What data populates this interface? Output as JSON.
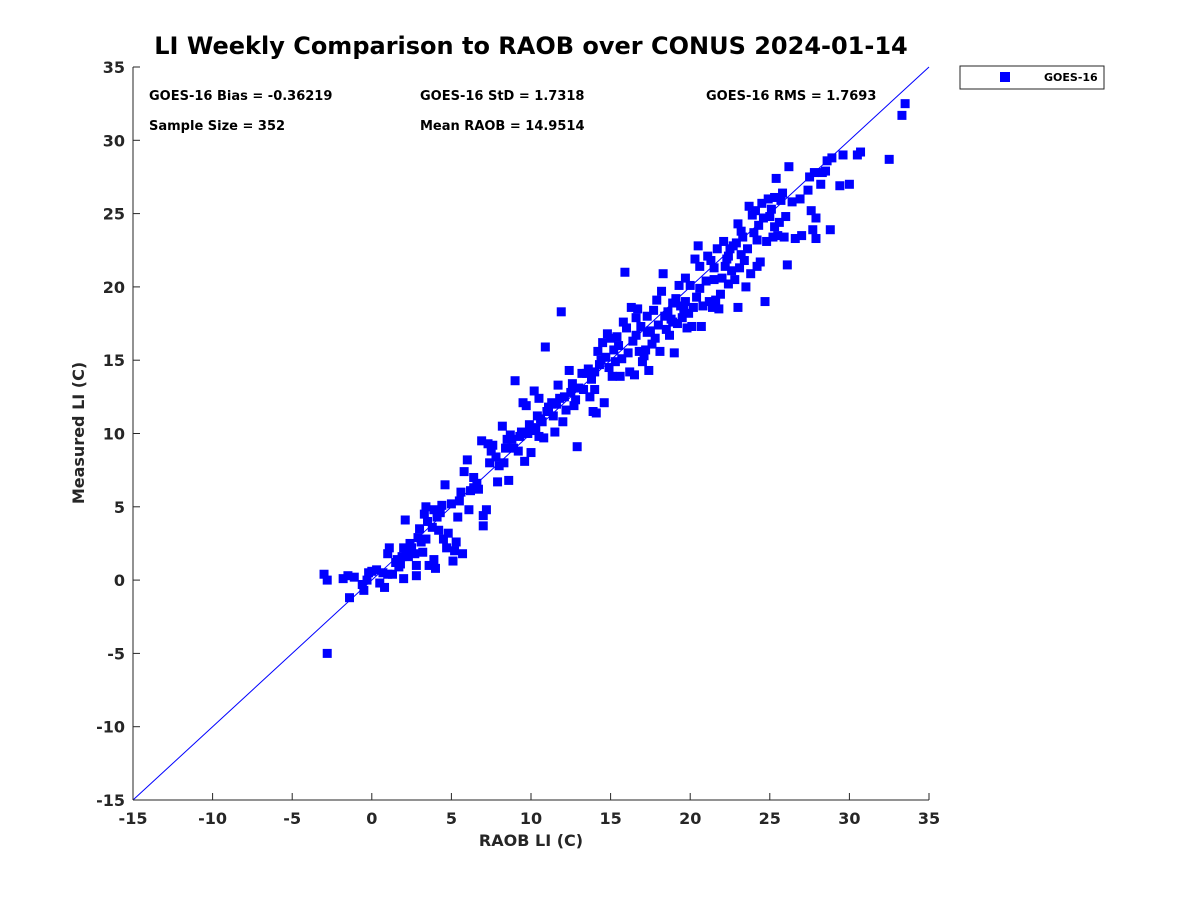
{
  "chart_data": {
    "type": "scatter",
    "title": "LI Weekly Comparison to RAOB over CONUS 2024-01-14",
    "xlabel": "RAOB LI (C)",
    "ylabel": "Measured LI (C)",
    "xlim": [
      -15,
      35
    ],
    "ylim": [
      -15,
      35
    ],
    "xticks": [
      -15,
      -10,
      -5,
      0,
      5,
      10,
      15,
      20,
      25,
      30,
      35
    ],
    "yticks": [
      -15,
      -10,
      -5,
      0,
      5,
      10,
      15,
      20,
      25,
      30,
      35
    ],
    "reference_line": {
      "from": [
        -15,
        -15
      ],
      "to": [
        35,
        35
      ],
      "color": "#0000ff"
    },
    "stats": {
      "bias": "GOES-16 Bias = -0.36219",
      "std": "GOES-16 StD = 1.7318",
      "rms": "GOES-16 RMS = 1.7693",
      "sample": "Sample Size = 352",
      "mean": "Mean RAOB = 14.9514"
    },
    "legend": {
      "placement": "outside-top-right",
      "label": "GOES-16"
    },
    "series": [
      {
        "name": "GOES-16",
        "color": "#0000ff",
        "marker": "square",
        "points": [
          [
            -3.0,
            0.4
          ],
          [
            -2.8,
            0.0
          ],
          [
            -2.8,
            -5.0
          ],
          [
            -1.8,
            0.1
          ],
          [
            -1.5,
            0.3
          ],
          [
            -1.4,
            -1.2
          ],
          [
            -1.1,
            0.2
          ],
          [
            -0.6,
            -0.3
          ],
          [
            -0.5,
            -0.7
          ],
          [
            -0.2,
            0.5
          ],
          [
            0.0,
            0.6
          ],
          [
            0.3,
            0.7
          ],
          [
            0.5,
            -0.2
          ],
          [
            0.8,
            -0.5
          ],
          [
            1.0,
            0.4
          ],
          [
            1.0,
            1.8
          ],
          [
            1.1,
            2.2
          ],
          [
            1.3,
            0.4
          ],
          [
            1.6,
            1.4
          ],
          [
            1.7,
            0.9
          ],
          [
            1.8,
            1.1
          ],
          [
            1.9,
            1.6
          ],
          [
            2.0,
            2.2
          ],
          [
            2.0,
            0.1
          ],
          [
            2.1,
            4.1
          ],
          [
            2.2,
            2.0
          ],
          [
            2.4,
            2.5
          ],
          [
            2.5,
            2.2
          ],
          [
            2.7,
            1.8
          ],
          [
            2.8,
            0.3
          ],
          [
            2.8,
            1.0
          ],
          [
            2.9,
            2.9
          ],
          [
            3.0,
            3.5
          ],
          [
            3.1,
            2.6
          ],
          [
            3.2,
            1.9
          ],
          [
            3.4,
            2.8
          ],
          [
            3.4,
            5.0
          ],
          [
            3.5,
            4.0
          ],
          [
            3.6,
            1.0
          ],
          [
            3.8,
            3.6
          ],
          [
            3.9,
            4.8
          ],
          [
            3.9,
            1.4
          ],
          [
            4.0,
            0.8
          ],
          [
            4.2,
            3.4
          ],
          [
            4.3,
            4.6
          ],
          [
            4.4,
            5.1
          ],
          [
            4.5,
            2.8
          ],
          [
            4.6,
            6.5
          ],
          [
            4.7,
            2.2
          ],
          [
            4.8,
            3.2
          ],
          [
            5.0,
            5.2
          ],
          [
            5.1,
            1.3
          ],
          [
            5.2,
            2.0
          ],
          [
            5.3,
            2.6
          ],
          [
            5.4,
            4.3
          ],
          [
            5.5,
            5.4
          ],
          [
            5.7,
            1.8
          ],
          [
            5.8,
            7.4
          ],
          [
            6.0,
            8.2
          ],
          [
            6.1,
            4.8
          ],
          [
            6.2,
            6.1
          ],
          [
            6.4,
            6.3
          ],
          [
            6.6,
            6.6
          ],
          [
            6.7,
            6.2
          ],
          [
            6.9,
            9.5
          ],
          [
            7.0,
            4.4
          ],
          [
            7.0,
            3.7
          ],
          [
            7.2,
            4.8
          ],
          [
            7.3,
            9.3
          ],
          [
            7.4,
            8.0
          ],
          [
            7.5,
            8.8
          ],
          [
            7.6,
            9.2
          ],
          [
            7.9,
            6.7
          ],
          [
            8.0,
            7.8
          ],
          [
            8.2,
            10.5
          ],
          [
            8.3,
            8.0
          ],
          [
            8.4,
            9.0
          ],
          [
            8.5,
            9.6
          ],
          [
            8.6,
            6.8
          ],
          [
            8.7,
            9.9
          ],
          [
            8.9,
            9.0
          ],
          [
            9.0,
            13.6
          ],
          [
            9.2,
            8.8
          ],
          [
            9.3,
            9.8
          ],
          [
            9.4,
            10.1
          ],
          [
            9.5,
            12.1
          ],
          [
            9.6,
            8.1
          ],
          [
            9.7,
            11.9
          ],
          [
            9.8,
            10.0
          ],
          [
            10.0,
            8.7
          ],
          [
            10.0,
            10.2
          ],
          [
            10.2,
            12.9
          ],
          [
            10.3,
            10.4
          ],
          [
            10.4,
            11.2
          ],
          [
            10.5,
            12.4
          ],
          [
            10.6,
            11.0
          ],
          [
            10.7,
            10.8
          ],
          [
            10.8,
            9.7
          ],
          [
            10.9,
            15.9
          ],
          [
            11.0,
            11.5
          ],
          [
            11.1,
            11.8
          ],
          [
            11.3,
            12.1
          ],
          [
            11.5,
            10.1
          ],
          [
            11.6,
            12.0
          ],
          [
            11.7,
            13.3
          ],
          [
            11.8,
            12.4
          ],
          [
            11.9,
            18.3
          ],
          [
            12.0,
            10.8
          ],
          [
            12.2,
            11.6
          ],
          [
            12.4,
            14.3
          ],
          [
            12.5,
            12.8
          ],
          [
            12.6,
            13.4
          ],
          [
            12.7,
            11.9
          ],
          [
            12.8,
            12.3
          ],
          [
            12.9,
            9.1
          ],
          [
            13.0,
            13.1
          ],
          [
            13.3,
            13.0
          ],
          [
            13.5,
            14.1
          ],
          [
            13.6,
            14.4
          ],
          [
            13.7,
            12.5
          ],
          [
            13.8,
            13.7
          ],
          [
            13.9,
            11.5
          ],
          [
            14.0,
            14.2
          ],
          [
            14.0,
            13.0
          ],
          [
            14.1,
            11.4
          ],
          [
            14.2,
            15.6
          ],
          [
            14.3,
            14.7
          ],
          [
            14.4,
            15.0
          ],
          [
            14.5,
            16.2
          ],
          [
            14.6,
            12.1
          ],
          [
            14.7,
            15.2
          ],
          [
            14.8,
            16.8
          ],
          [
            15.0,
            16.5
          ],
          [
            15.1,
            13.9
          ],
          [
            15.2,
            15.7
          ],
          [
            15.3,
            14.9
          ],
          [
            15.5,
            16.0
          ],
          [
            15.6,
            13.9
          ],
          [
            15.7,
            15.1
          ],
          [
            15.8,
            17.6
          ],
          [
            15.9,
            21.0
          ],
          [
            16.0,
            17.2
          ],
          [
            16.1,
            15.5
          ],
          [
            16.2,
            14.2
          ],
          [
            16.3,
            18.6
          ],
          [
            16.4,
            16.3
          ],
          [
            16.5,
            14.0
          ],
          [
            16.6,
            16.7
          ],
          [
            16.7,
            18.5
          ],
          [
            16.8,
            15.6
          ],
          [
            16.9,
            17.3
          ],
          [
            17.0,
            14.9
          ],
          [
            17.1,
            15.3
          ],
          [
            17.2,
            15.7
          ],
          [
            17.3,
            18.0
          ],
          [
            17.4,
            14.3
          ],
          [
            17.5,
            17.0
          ],
          [
            17.6,
            16.1
          ],
          [
            17.7,
            18.4
          ],
          [
            17.8,
            16.5
          ],
          [
            17.9,
            19.1
          ],
          [
            18.0,
            17.4
          ],
          [
            18.1,
            15.6
          ],
          [
            18.2,
            19.7
          ],
          [
            18.3,
            20.9
          ],
          [
            18.4,
            18.0
          ],
          [
            18.5,
            17.1
          ],
          [
            18.6,
            18.3
          ],
          [
            18.7,
            16.7
          ],
          [
            18.8,
            17.8
          ],
          [
            18.9,
            18.9
          ],
          [
            19.0,
            15.5
          ],
          [
            19.1,
            19.2
          ],
          [
            19.2,
            17.5
          ],
          [
            19.3,
            20.1
          ],
          [
            19.4,
            18.7
          ],
          [
            19.5,
            17.9
          ],
          [
            19.6,
            18.4
          ],
          [
            19.7,
            19.0
          ],
          [
            19.8,
            17.2
          ],
          [
            19.9,
            18.2
          ],
          [
            20.0,
            20.1
          ],
          [
            20.1,
            17.3
          ],
          [
            20.2,
            18.6
          ],
          [
            20.3,
            21.9
          ],
          [
            20.4,
            19.3
          ],
          [
            20.5,
            22.8
          ],
          [
            20.6,
            21.4
          ],
          [
            20.7,
            17.3
          ],
          [
            20.8,
            18.7
          ],
          [
            21.0,
            20.4
          ],
          [
            21.1,
            22.1
          ],
          [
            21.2,
            19.0
          ],
          [
            21.3,
            21.8
          ],
          [
            21.4,
            18.6
          ],
          [
            21.5,
            20.5
          ],
          [
            21.6,
            19.1
          ],
          [
            21.7,
            22.6
          ],
          [
            21.8,
            18.5
          ],
          [
            21.9,
            19.5
          ],
          [
            22.0,
            20.6
          ],
          [
            22.1,
            23.1
          ],
          [
            22.2,
            21.4
          ],
          [
            22.3,
            21.9
          ],
          [
            22.4,
            20.2
          ],
          [
            22.5,
            22.6
          ],
          [
            22.6,
            21.1
          ],
          [
            22.7,
            22.8
          ],
          [
            22.8,
            20.5
          ],
          [
            22.9,
            23.0
          ],
          [
            23.0,
            18.6
          ],
          [
            23.0,
            24.3
          ],
          [
            23.1,
            21.3
          ],
          [
            23.2,
            22.2
          ],
          [
            23.3,
            23.4
          ],
          [
            23.4,
            21.8
          ],
          [
            23.5,
            20.0
          ],
          [
            23.6,
            22.6
          ],
          [
            23.7,
            25.5
          ],
          [
            23.8,
            20.9
          ],
          [
            23.9,
            24.9
          ],
          [
            24.0,
            23.7
          ],
          [
            24.1,
            25.2
          ],
          [
            24.2,
            21.4
          ],
          [
            24.3,
            24.2
          ],
          [
            24.4,
            21.7
          ],
          [
            24.5,
            25.7
          ],
          [
            24.6,
            24.7
          ],
          [
            24.7,
            19.0
          ],
          [
            24.8,
            23.1
          ],
          [
            24.9,
            26.0
          ],
          [
            25.0,
            24.8
          ],
          [
            25.1,
            25.3
          ],
          [
            25.2,
            23.4
          ],
          [
            25.3,
            26.1
          ],
          [
            25.4,
            27.4
          ],
          [
            25.5,
            23.5
          ],
          [
            25.6,
            24.4
          ],
          [
            25.7,
            25.9
          ],
          [
            25.8,
            26.4
          ],
          [
            25.9,
            23.4
          ],
          [
            26.0,
            24.8
          ],
          [
            26.1,
            21.5
          ],
          [
            26.2,
            28.2
          ],
          [
            26.6,
            23.3
          ],
          [
            26.9,
            26.0
          ],
          [
            27.0,
            23.5
          ],
          [
            27.5,
            27.5
          ],
          [
            27.6,
            25.2
          ],
          [
            27.7,
            23.9
          ],
          [
            27.8,
            27.8
          ],
          [
            27.9,
            24.7
          ],
          [
            27.9,
            23.3
          ],
          [
            28.2,
            27.0
          ],
          [
            28.3,
            27.8
          ],
          [
            28.6,
            28.6
          ],
          [
            28.8,
            23.9
          ],
          [
            28.9,
            28.8
          ],
          [
            29.4,
            26.9
          ],
          [
            29.6,
            29.0
          ],
          [
            30.0,
            27.0
          ],
          [
            30.5,
            29.0
          ],
          [
            30.7,
            29.2
          ],
          [
            32.5,
            28.7
          ],
          [
            33.3,
            31.7
          ],
          [
            33.5,
            32.5
          ],
          [
            -0.3,
            0.0
          ],
          [
            0.7,
            0.5
          ],
          [
            1.5,
            1.2
          ],
          [
            2.3,
            1.6
          ],
          [
            3.3,
            4.5
          ],
          [
            4.1,
            4.3
          ],
          [
            5.6,
            6.0
          ],
          [
            6.4,
            7.0
          ],
          [
            7.8,
            8.4
          ],
          [
            8.8,
            9.6
          ],
          [
            9.9,
            10.6
          ],
          [
            10.5,
            9.8
          ],
          [
            11.4,
            11.2
          ],
          [
            12.1,
            12.5
          ],
          [
            13.2,
            14.1
          ],
          [
            14.9,
            14.5
          ],
          [
            15.4,
            16.6
          ],
          [
            16.6,
            17.9
          ],
          [
            17.3,
            16.9
          ],
          [
            18.9,
            17.6
          ],
          [
            19.7,
            20.6
          ],
          [
            20.6,
            19.9
          ],
          [
            21.5,
            21.3
          ],
          [
            22.4,
            22.1
          ],
          [
            23.2,
            23.8
          ],
          [
            24.2,
            23.2
          ],
          [
            25.3,
            24.1
          ],
          [
            26.4,
            25.8
          ],
          [
            27.4,
            26.6
          ],
          [
            28.5,
            27.9
          ]
        ]
      }
    ]
  }
}
